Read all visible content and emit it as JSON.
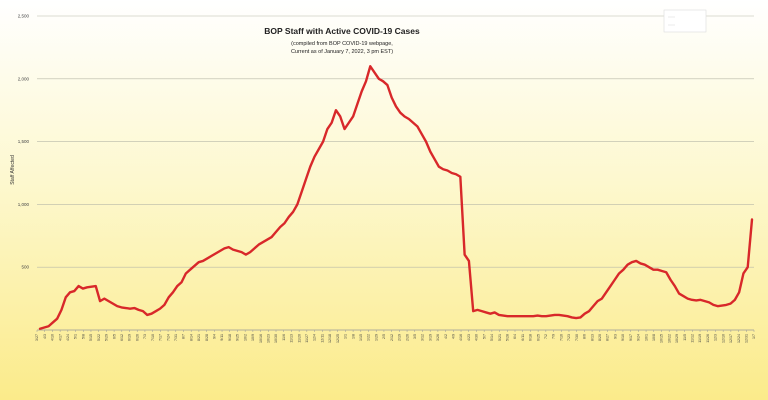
{
  "chart_data": {
    "type": "line",
    "title": "BOP Staff with Active COVID-19 Cases",
    "subtitle_lines": [
      "(compiled from BOP COVID-19 webpage,",
      "Current as of January 7, 2022, 3 pm EST)"
    ],
    "ylabel": "Staff Affected",
    "xlabel": "",
    "ylim": [
      0,
      2500
    ],
    "y_ticks": [
      500,
      1000,
      1500,
      2000,
      2500
    ],
    "y_tick_labels": [
      "500",
      "1,000",
      "1,500",
      "2,000",
      "2,500"
    ],
    "grid": true,
    "legend": "top-right",
    "colors": {
      "line": "#d8282a",
      "background_top": "#ffffff",
      "background_bottom": "#fbeb8a",
      "gridline": "#b8b8a8"
    },
    "series": [
      {
        "values": [
          10,
          20,
          30,
          60,
          90,
          160,
          260,
          300,
          310,
          350,
          330,
          340,
          345,
          350,
          230,
          250,
          230,
          210,
          190,
          180,
          175,
          170,
          175,
          160,
          150,
          120,
          130,
          150,
          170,
          200,
          260,
          300,
          350,
          380,
          450,
          480,
          510,
          540,
          550,
          570,
          590,
          610,
          630,
          650,
          660,
          640,
          630,
          620,
          600,
          620,
          650,
          680,
          700,
          720,
          740,
          780,
          820,
          850,
          900,
          940,
          1000,
          1100,
          1200,
          1300,
          1380,
          1440,
          1500,
          1600,
          1650,
          1750,
          1700,
          1600,
          1650,
          1700,
          1800,
          1900,
          1980,
          2100,
          2050,
          2000,
          1980,
          1950,
          1850,
          1780,
          1730,
          1700,
          1680,
          1650,
          1620,
          1560,
          1500,
          1420,
          1360,
          1300,
          1280,
          1270,
          1250,
          1240,
          1220,
          600,
          550,
          150,
          160,
          150,
          140,
          130,
          140,
          120,
          115,
          110,
          110,
          110,
          110,
          110,
          110,
          110,
          115,
          110,
          110,
          115,
          120,
          120,
          115,
          110,
          100,
          95,
          100,
          130,
          150,
          190,
          230,
          250,
          300,
          350,
          400,
          450,
          480,
          520,
          540,
          550,
          530,
          520,
          500,
          480,
          480,
          470,
          460,
          400,
          350,
          290,
          270,
          250,
          240,
          235,
          240,
          230,
          220,
          200,
          190,
          195,
          200,
          210,
          240,
          300,
          450,
          500,
          880
        ]
      }
    ],
    "x_tick_labels": [
      "3/27",
      "4/3",
      "4/10",
      "4/17",
      "4/24",
      "5/1",
      "5/8",
      "5/15",
      "5/22",
      "5/29",
      "6/5",
      "6/12",
      "6/19",
      "6/26",
      "7/3",
      "7/10",
      "7/17",
      "7/24",
      "7/31",
      "8/7",
      "8/14",
      "8/21",
      "8/28",
      "9/4",
      "9/11",
      "9/18",
      "9/25",
      "10/2",
      "10/9",
      "10/16",
      "10/23",
      "10/30",
      "11/6",
      "11/13",
      "11/20",
      "11/27",
      "12/4",
      "12/11",
      "12/18",
      "12/25",
      "1/1",
      "1/8",
      "1/15",
      "1/22",
      "1/29",
      "2/5",
      "2/12",
      "2/19",
      "2/26",
      "3/5",
      "3/12",
      "3/19",
      "3/26",
      "4/2",
      "4/9",
      "4/16",
      "4/23",
      "4/30",
      "5/7",
      "5/14",
      "5/21",
      "5/28",
      "6/4",
      "6/11",
      "6/18",
      "6/25",
      "7/2",
      "7/9",
      "7/16",
      "7/23",
      "7/30",
      "8/6",
      "8/13",
      "8/20",
      "8/27",
      "9/3",
      "9/10",
      "9/17",
      "9/24",
      "10/1",
      "10/8",
      "10/15",
      "10/22",
      "10/29",
      "11/5",
      "11/12",
      "11/19",
      "11/26",
      "12/3",
      "12/10",
      "12/17",
      "12/24",
      "12/31",
      "1/7"
    ]
  }
}
